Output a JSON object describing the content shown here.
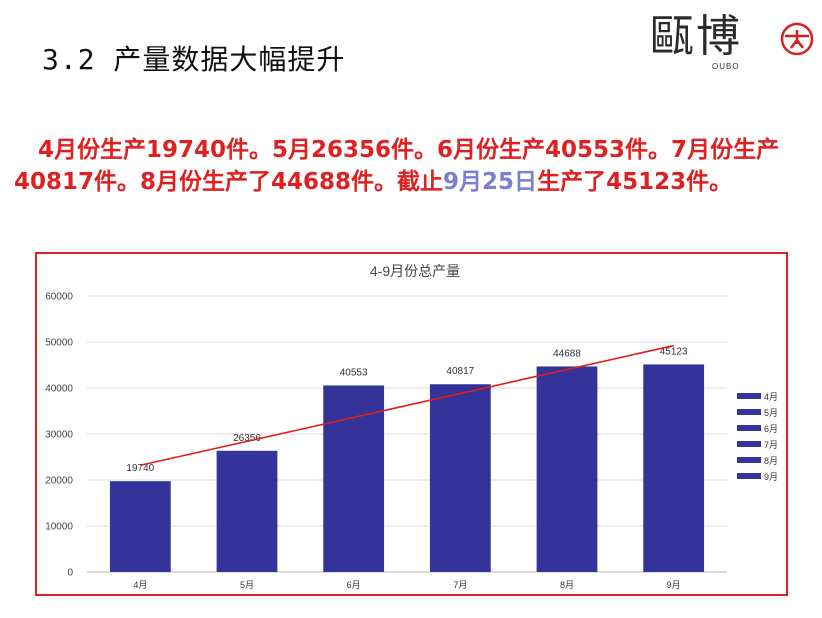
{
  "slide": {
    "title": "3.2 产量数据大幅提升",
    "summary": {
      "part1": "4月份生产19740件。5月26356件。6月份生产40553件。7月份生产40817件。8月份生产了44688件。截止",
      "highlight": "9月25日",
      "part2": "生产了45123件。",
      "color": "#e02020",
      "highlight_color": "#7b7fd0"
    }
  },
  "logo": {
    "glyphs": "甌博",
    "sub": "OUBO"
  },
  "chart_data": {
    "type": "bar",
    "title": "4-9月份总产量",
    "categories": [
      "4月",
      "5月",
      "6月",
      "7月",
      "8月",
      "9月"
    ],
    "values": [
      19740,
      26356,
      40553,
      40817,
      44688,
      45123
    ],
    "data_labels": [
      "19740",
      "26356",
      "40553",
      "40817",
      "44688",
      "45123"
    ],
    "ylim": [
      0,
      60000
    ],
    "yticks": [
      0,
      10000,
      20000,
      30000,
      40000,
      50000,
      60000
    ],
    "ytick_labels": [
      "0",
      "10000",
      "20000",
      "30000",
      "40000",
      "50000",
      "60000"
    ],
    "grid": true,
    "bar_color": "#333399",
    "trendline": {
      "type": "linear",
      "color": "#e02020"
    },
    "legend": {
      "position": "right",
      "entries": [
        "4月",
        "5月",
        "6月",
        "7月",
        "8月",
        "9月"
      ]
    }
  }
}
